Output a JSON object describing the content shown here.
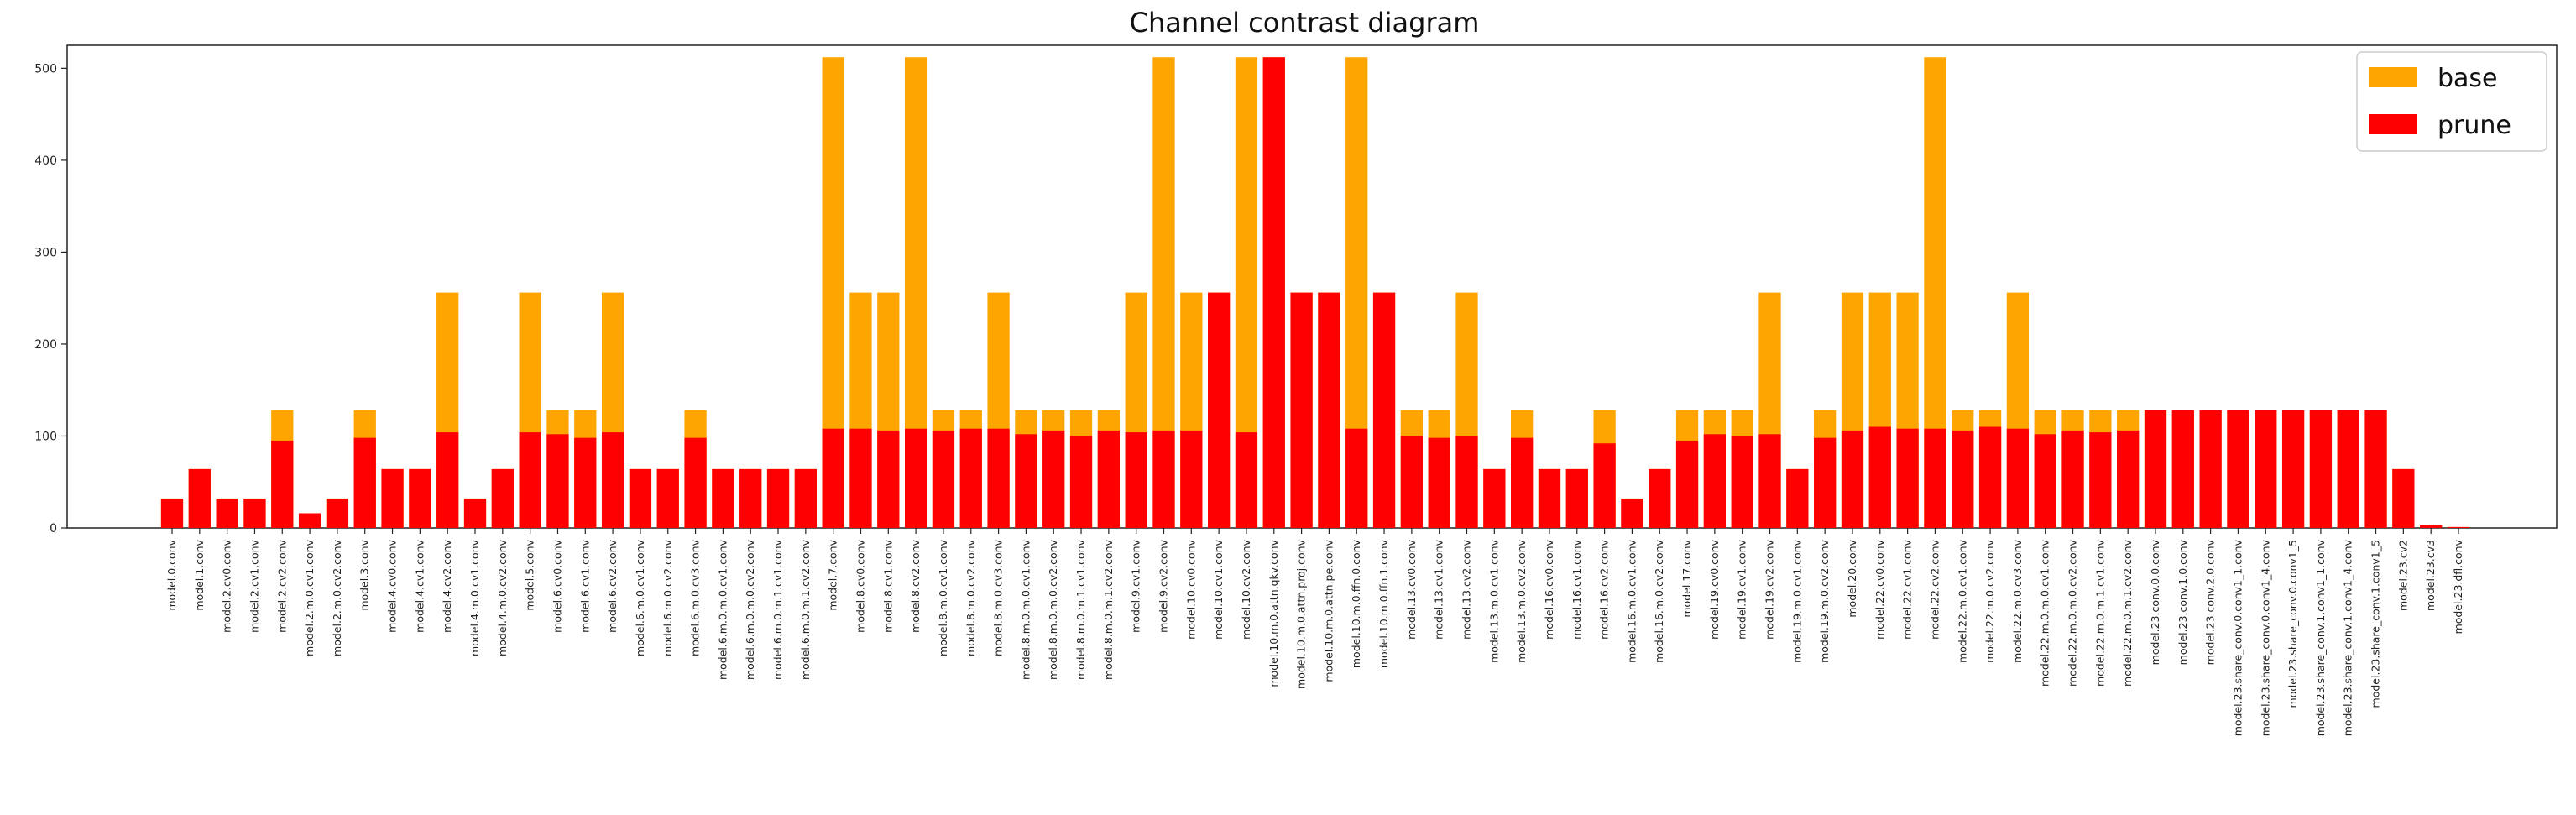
{
  "chart_data": {
    "type": "bar",
    "title": "Channel contrast diagram",
    "xlabel": "",
    "ylabel": "",
    "ylim": [
      0,
      525
    ],
    "yticks": [
      0,
      100,
      200,
      300,
      400,
      500
    ],
    "grid": false,
    "stacked_overlay": true,
    "legend": {
      "placement": "top-right",
      "entries": [
        "base",
        "prune"
      ]
    },
    "colors": {
      "base": "#FFA500",
      "prune": "#FF0000"
    },
    "categories": [
      "model.0.conv",
      "model.1.conv",
      "model.2.cv0.conv",
      "model.2.cv1.conv",
      "model.2.cv2.conv",
      "model.2.m.0.cv1.conv",
      "model.2.m.0.cv2.conv",
      "model.3.conv",
      "model.4.cv0.conv",
      "model.4.cv1.conv",
      "model.4.cv2.conv",
      "model.4.m.0.cv1.conv",
      "model.4.m.0.cv2.conv",
      "model.5.conv",
      "model.6.cv0.conv",
      "model.6.cv1.conv",
      "model.6.cv2.conv",
      "model.6.m.0.cv1.conv",
      "model.6.m.0.cv2.conv",
      "model.6.m.0.cv3.conv",
      "model.6.m.0.m.0.cv1.conv",
      "model.6.m.0.m.0.cv2.conv",
      "model.6.m.0.m.1.cv1.conv",
      "model.6.m.0.m.1.cv2.conv",
      "model.7.conv",
      "model.8.cv0.conv",
      "model.8.cv1.conv",
      "model.8.cv2.conv",
      "model.8.m.0.cv1.conv",
      "model.8.m.0.cv2.conv",
      "model.8.m.0.cv3.conv",
      "model.8.m.0.m.0.cv1.conv",
      "model.8.m.0.m.0.cv2.conv",
      "model.8.m.0.m.1.cv1.conv",
      "model.8.m.0.m.1.cv2.conv",
      "model.9.cv1.conv",
      "model.9.cv2.conv",
      "model.10.cv0.conv",
      "model.10.cv1.conv",
      "model.10.cv2.conv",
      "model.10.m.0.attn.qkv.conv",
      "model.10.m.0.attn.proj.conv",
      "model.10.m.0.attn.pe.conv",
      "model.10.m.0.ffn.0.conv",
      "model.10.m.0.ffn.1.conv",
      "model.13.cv0.conv",
      "model.13.cv1.conv",
      "model.13.cv2.conv",
      "model.13.m.0.cv1.conv",
      "model.13.m.0.cv2.conv",
      "model.16.cv0.conv",
      "model.16.cv1.conv",
      "model.16.cv2.conv",
      "model.16.m.0.cv1.conv",
      "model.16.m.0.cv2.conv",
      "model.17.conv",
      "model.19.cv0.conv",
      "model.19.cv1.conv",
      "model.19.cv2.conv",
      "model.19.m.0.cv1.conv",
      "model.19.m.0.cv2.conv",
      "model.20.conv",
      "model.22.cv0.conv",
      "model.22.cv1.conv",
      "model.22.cv2.conv",
      "model.22.m.0.cv1.conv",
      "model.22.m.0.cv2.conv",
      "model.22.m.0.cv3.conv",
      "model.22.m.0.m.0.cv1.conv",
      "model.22.m.0.m.0.cv2.conv",
      "model.22.m.0.m.1.cv1.conv",
      "model.22.m.0.m.1.cv2.conv",
      "model.23.conv.0.0.conv",
      "model.23.conv.1.0.conv",
      "model.23.conv.2.0.conv",
      "model.23.share_conv.0.conv1_1.conv",
      "model.23.share_conv.0.conv1_4.conv",
      "model.23.share_conv.0.conv1_5",
      "model.23.share_conv.1.conv1_1.conv",
      "model.23.share_conv.1.conv1_4.conv",
      "model.23.share_conv.1.conv1_5",
      "model.23.cv2",
      "model.23.cv3",
      "model.23.dfl.conv"
    ],
    "series": [
      {
        "name": "base",
        "values": [
          32,
          64,
          32,
          32,
          128,
          16,
          32,
          128,
          64,
          64,
          256,
          32,
          64,
          256,
          128,
          128,
          256,
          64,
          64,
          128,
          64,
          64,
          64,
          64,
          512,
          256,
          256,
          512,
          128,
          128,
          256,
          128,
          128,
          128,
          128,
          256,
          512,
          256,
          256,
          512,
          512,
          256,
          256,
          512,
          256,
          128,
          128,
          256,
          64,
          128,
          64,
          64,
          128,
          32,
          64,
          128,
          128,
          128,
          256,
          64,
          128,
          256,
          256,
          256,
          512,
          128,
          128,
          256,
          128,
          128,
          128,
          128,
          128,
          128,
          128,
          128,
          128,
          128,
          128,
          128,
          128,
          64,
          3,
          1
        ]
      },
      {
        "name": "prune",
        "values": [
          32,
          64,
          32,
          32,
          95,
          16,
          32,
          98,
          64,
          64,
          104,
          32,
          64,
          104,
          102,
          98,
          104,
          64,
          64,
          98,
          64,
          64,
          64,
          64,
          108,
          108,
          106,
          108,
          106,
          108,
          108,
          102,
          106,
          100,
          106,
          104,
          106,
          106,
          256,
          104,
          512,
          256,
          256,
          108,
          256,
          100,
          98,
          100,
          64,
          98,
          64,
          64,
          92,
          32,
          64,
          95,
          102,
          100,
          102,
          64,
          98,
          106,
          110,
          108,
          108,
          106,
          110,
          108,
          102,
          106,
          104,
          106,
          128,
          128,
          128,
          128,
          128,
          128,
          128,
          128,
          128,
          64,
          3,
          1
        ]
      }
    ]
  }
}
